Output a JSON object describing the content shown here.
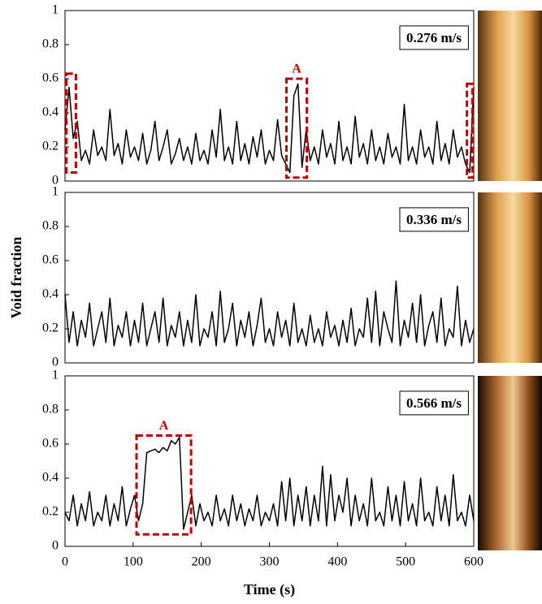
{
  "chart_data": [
    {
      "type": "line",
      "annotation": "0.276 m/s",
      "color": "#000000",
      "xlim": [
        0,
        600
      ],
      "ylim": [
        0,
        1
      ],
      "yticks": [
        0,
        0.2,
        0.4,
        0.6,
        0.8,
        1
      ],
      "highlight_color": "#c00000",
      "highlights": [
        {
          "x": [
            2,
            16
          ],
          "y": [
            0.05,
            0.63
          ]
        },
        {
          "x": [
            325,
            355
          ],
          "y": [
            0.02,
            0.6
          ],
          "label": "A"
        },
        {
          "x": [
            590,
            598
          ],
          "y": [
            0.02,
            0.57
          ]
        }
      ],
      "x": [
        0,
        6,
        12,
        18,
        24,
        30,
        36,
        42,
        48,
        54,
        60,
        66,
        72,
        78,
        84,
        90,
        96,
        102,
        108,
        114,
        120,
        126,
        132,
        138,
        144,
        150,
        156,
        162,
        168,
        174,
        180,
        186,
        192,
        198,
        204,
        210,
        216,
        222,
        228,
        234,
        240,
        246,
        252,
        258,
        264,
        270,
        276,
        282,
        288,
        294,
        300,
        306,
        312,
        318,
        324,
        330,
        336,
        342,
        348,
        354,
        360,
        366,
        372,
        378,
        384,
        390,
        396,
        402,
        408,
        414,
        420,
        426,
        432,
        438,
        444,
        450,
        456,
        462,
        468,
        474,
        480,
        486,
        492,
        498,
        504,
        510,
        516,
        522,
        528,
        534,
        540,
        546,
        552,
        558,
        564,
        570,
        576,
        582,
        588,
        594,
        600
      ],
      "values": [
        0.3,
        0.55,
        0.25,
        0.35,
        0.12,
        0.18,
        0.1,
        0.3,
        0.15,
        0.2,
        0.12,
        0.42,
        0.15,
        0.22,
        0.1,
        0.3,
        0.14,
        0.2,
        0.12,
        0.28,
        0.1,
        0.18,
        0.35,
        0.12,
        0.2,
        0.3,
        0.1,
        0.16,
        0.25,
        0.12,
        0.2,
        0.1,
        0.28,
        0.12,
        0.18,
        0.1,
        0.3,
        0.14,
        0.42,
        0.12,
        0.2,
        0.1,
        0.35,
        0.12,
        0.22,
        0.1,
        0.26,
        0.14,
        0.3,
        0.1,
        0.18,
        0.12,
        0.36,
        0.15,
        0.1,
        0.05,
        0.5,
        0.57,
        0.08,
        0.3,
        0.12,
        0.2,
        0.1,
        0.3,
        0.14,
        0.22,
        0.1,
        0.35,
        0.12,
        0.2,
        0.1,
        0.38,
        0.14,
        0.22,
        0.1,
        0.3,
        0.12,
        0.2,
        0.1,
        0.28,
        0.14,
        0.2,
        0.1,
        0.45,
        0.12,
        0.2,
        0.1,
        0.3,
        0.14,
        0.2,
        0.1,
        0.35,
        0.12,
        0.22,
        0.1,
        0.3,
        0.14,
        0.2,
        0.1,
        0.05,
        0.55
      ]
    },
    {
      "type": "line",
      "annotation": "0.336 m/s",
      "color": "#000000",
      "ylabel": "Void fraction",
      "xlim": [
        0,
        600
      ],
      "ylim": [
        0,
        1
      ],
      "yticks": [
        0,
        0.2,
        0.4,
        0.6,
        0.8,
        1
      ],
      "x": [
        0,
        6,
        12,
        18,
        24,
        30,
        36,
        42,
        48,
        54,
        60,
        66,
        72,
        78,
        84,
        90,
        96,
        102,
        108,
        114,
        120,
        126,
        132,
        138,
        144,
        150,
        156,
        162,
        168,
        174,
        180,
        186,
        192,
        198,
        204,
        210,
        216,
        222,
        228,
        234,
        240,
        246,
        252,
        258,
        264,
        270,
        276,
        282,
        288,
        294,
        300,
        306,
        312,
        318,
        324,
        330,
        336,
        342,
        348,
        354,
        360,
        366,
        372,
        378,
        384,
        390,
        396,
        402,
        408,
        414,
        420,
        426,
        432,
        438,
        444,
        450,
        456,
        462,
        468,
        474,
        480,
        486,
        492,
        498,
        504,
        510,
        516,
        522,
        528,
        534,
        540,
        546,
        552,
        558,
        564,
        570,
        576,
        582,
        588,
        594,
        600
      ],
      "values": [
        0.4,
        0.12,
        0.3,
        0.1,
        0.25,
        0.15,
        0.35,
        0.1,
        0.2,
        0.3,
        0.12,
        0.38,
        0.1,
        0.22,
        0.15,
        0.3,
        0.1,
        0.25,
        0.12,
        0.35,
        0.1,
        0.2,
        0.3,
        0.12,
        0.38,
        0.1,
        0.22,
        0.15,
        0.3,
        0.1,
        0.25,
        0.12,
        0.4,
        0.1,
        0.2,
        0.15,
        0.3,
        0.1,
        0.42,
        0.12,
        0.2,
        0.35,
        0.1,
        0.25,
        0.15,
        0.3,
        0.1,
        0.22,
        0.38,
        0.12,
        0.2,
        0.1,
        0.3,
        0.15,
        0.25,
        0.1,
        0.35,
        0.12,
        0.2,
        0.1,
        0.28,
        0.12,
        0.2,
        0.1,
        0.3,
        0.15,
        0.22,
        0.1,
        0.25,
        0.12,
        0.32,
        0.1,
        0.2,
        0.15,
        0.38,
        0.12,
        0.42,
        0.1,
        0.3,
        0.2,
        0.12,
        0.48,
        0.1,
        0.25,
        0.15,
        0.35,
        0.12,
        0.4,
        0.1,
        0.22,
        0.3,
        0.12,
        0.38,
        0.1,
        0.2,
        0.15,
        0.45,
        0.1,
        0.25,
        0.12,
        0.2
      ]
    },
    {
      "type": "line",
      "annotation": "0.566 m/s",
      "color": "#000000",
      "xlabel": "Time (s)",
      "xlim": [
        0,
        600
      ],
      "xticks": [
        0,
        100,
        200,
        300,
        400,
        500,
        600
      ],
      "ylim": [
        0,
        1
      ],
      "yticks": [
        0,
        0.2,
        0.4,
        0.6,
        0.8,
        1
      ],
      "highlight_color": "#c00000",
      "highlights": [
        {
          "x": [
            105,
            185
          ],
          "y": [
            0.07,
            0.65
          ],
          "label": "A"
        }
      ],
      "x": [
        0,
        6,
        12,
        18,
        24,
        30,
        36,
        42,
        48,
        54,
        60,
        66,
        72,
        78,
        84,
        90,
        96,
        102,
        108,
        114,
        120,
        126,
        132,
        138,
        144,
        150,
        156,
        162,
        168,
        174,
        180,
        186,
        192,
        198,
        204,
        210,
        216,
        222,
        228,
        234,
        240,
        246,
        252,
        258,
        264,
        270,
        276,
        282,
        288,
        294,
        300,
        306,
        312,
        318,
        324,
        330,
        336,
        342,
        348,
        354,
        360,
        366,
        372,
        378,
        384,
        390,
        396,
        402,
        408,
        414,
        420,
        426,
        432,
        438,
        444,
        450,
        456,
        462,
        468,
        474,
        480,
        486,
        492,
        498,
        504,
        510,
        516,
        522,
        528,
        534,
        540,
        546,
        552,
        558,
        564,
        570,
        576,
        582,
        588,
        594,
        600
      ],
      "values": [
        0.2,
        0.15,
        0.3,
        0.12,
        0.25,
        0.15,
        0.32,
        0.12,
        0.2,
        0.15,
        0.3,
        0.12,
        0.25,
        0.15,
        0.35,
        0.12,
        0.22,
        0.3,
        0.15,
        0.25,
        0.55,
        0.56,
        0.57,
        0.55,
        0.58,
        0.56,
        0.62,
        0.6,
        0.64,
        0.1,
        0.2,
        0.3,
        0.12,
        0.25,
        0.15,
        0.2,
        0.12,
        0.3,
        0.15,
        0.22,
        0.12,
        0.3,
        0.15,
        0.25,
        0.12,
        0.22,
        0.15,
        0.3,
        0.12,
        0.2,
        0.15,
        0.25,
        0.12,
        0.38,
        0.15,
        0.4,
        0.12,
        0.3,
        0.15,
        0.35,
        0.12,
        0.3,
        0.15,
        0.47,
        0.12,
        0.42,
        0.15,
        0.3,
        0.2,
        0.4,
        0.12,
        0.3,
        0.15,
        0.25,
        0.12,
        0.4,
        0.15,
        0.2,
        0.12,
        0.35,
        0.15,
        0.3,
        0.12,
        0.38,
        0.15,
        0.25,
        0.12,
        0.4,
        0.15,
        0.2,
        0.12,
        0.35,
        0.15,
        0.3,
        0.12,
        0.42,
        0.15,
        0.2,
        0.12,
        0.3,
        0.15
      ]
    }
  ]
}
